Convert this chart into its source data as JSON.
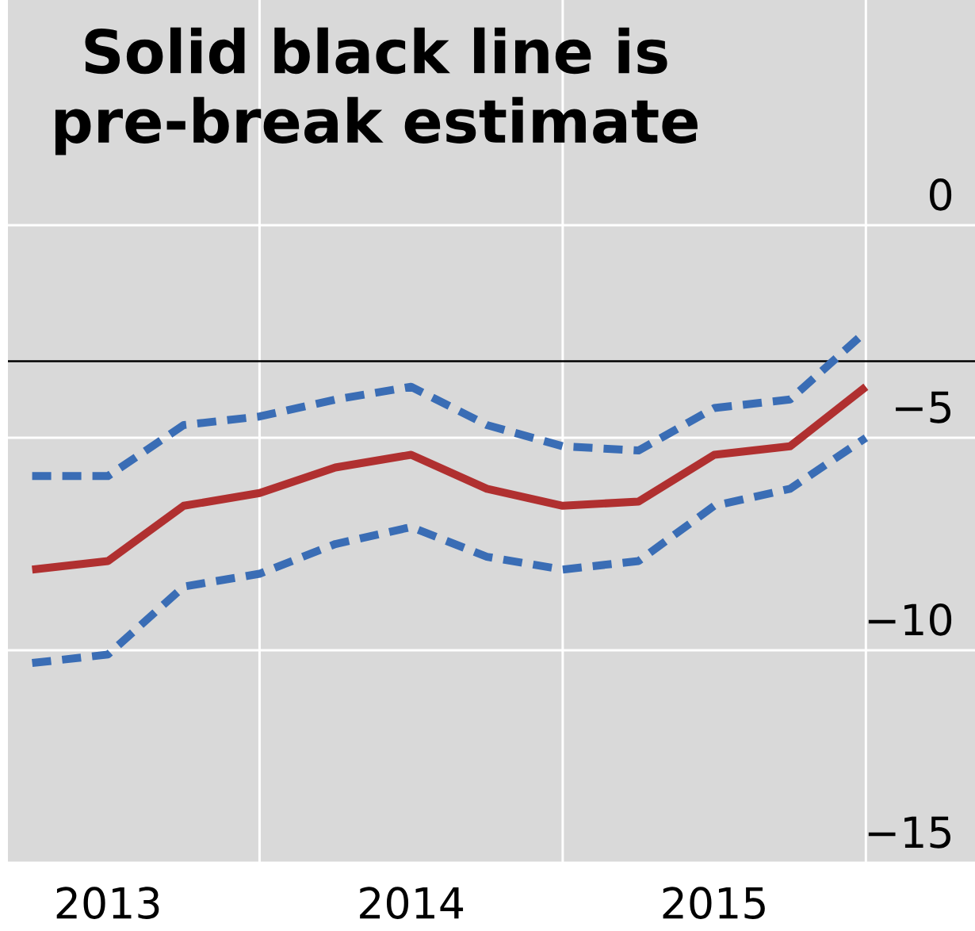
{
  "chart_data": {
    "type": "line",
    "annotations": [
      "Solid black line is pre-break estimate"
    ],
    "x": [
      2013.25,
      2013.5,
      2013.75,
      2014.0,
      2014.25,
      2014.5,
      2014.75,
      2015.0,
      2015.25,
      2015.5,
      2015.75,
      2016.0
    ],
    "series": [
      {
        "color": "#3a6db5",
        "line_style": "dashed",
        "values": [
          -5.9,
          -5.9,
          -4.7,
          -4.5,
          -4.1,
          -3.8,
          -4.7,
          -5.2,
          -5.3,
          -4.3,
          -4.1,
          -2.5
        ]
      },
      {
        "color": "#3a6db5",
        "line_style": "dashed",
        "values": [
          -10.3,
          -10.1,
          -8.5,
          -8.2,
          -7.5,
          -7.1,
          -7.8,
          -8.1,
          -7.9,
          -6.6,
          -6.2,
          -5.0
        ]
      },
      {
        "color": "#b03030",
        "line_style": "solid",
        "values": [
          -8.1,
          -7.9,
          -6.6,
          -6.3,
          -5.7,
          -5.4,
          -6.2,
          -6.6,
          -6.5,
          -5.4,
          -5.2,
          -3.8
        ]
      }
    ],
    "xlim": [
      2013.17,
      2016.36
    ],
    "xticks": [
      {
        "value": 2013.5,
        "label": "2013"
      },
      {
        "value": 2014,
        "label": null
      },
      {
        "value": 2014.5,
        "label": "2014"
      },
      {
        "value": 2015,
        "label": null
      },
      {
        "value": 2015.5,
        "label": "2015"
      },
      {
        "value": 2016,
        "label": null
      }
    ],
    "ylim": [
      -15,
      5.3
    ],
    "yticks": [
      {
        "value": 0,
        "label": "0"
      },
      {
        "value": -5,
        "label": "−5"
      },
      {
        "value": -10,
        "label": "−10"
      },
      {
        "value": -15,
        "label": "−15"
      }
    ],
    "ref_lines": [
      {
        "axis": "y",
        "value": -3.2,
        "color": "#000000"
      }
    ],
    "grid": true
  }
}
